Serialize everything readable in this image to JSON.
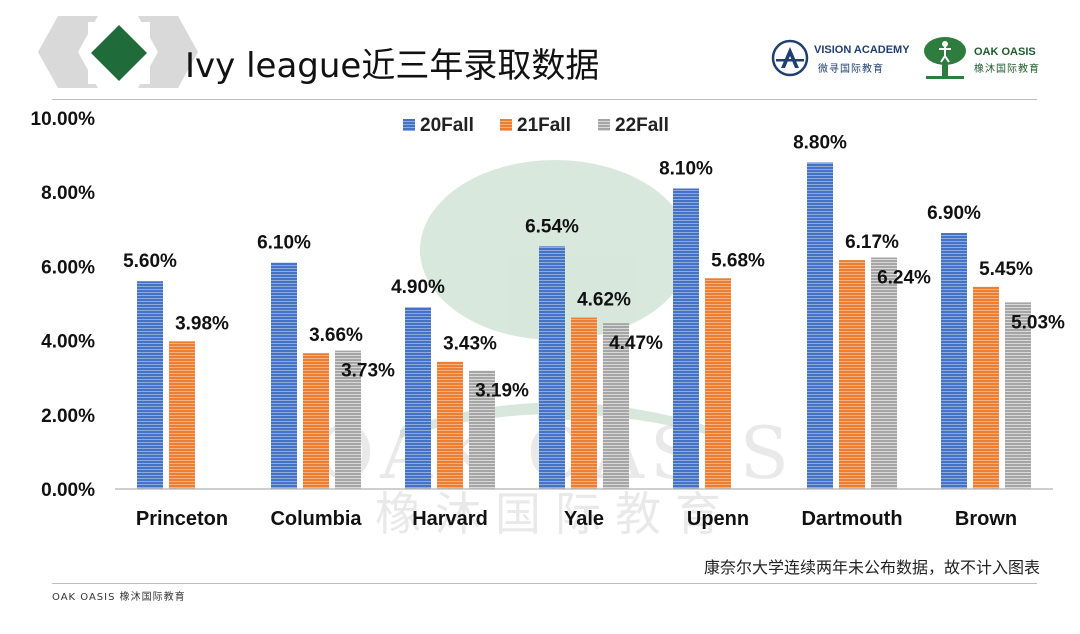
{
  "header": {
    "title": "Ivy league近三年录取数据",
    "logo_vision_name": "VISION ACADEMY",
    "logo_vision_sub": "微寻国际教育",
    "logo_oak_name": "OAK OASIS",
    "logo_oak_sub": "橡沐国际教育"
  },
  "watermark": {
    "line1": "OAK OASIS",
    "line2": "橡沐国际教育"
  },
  "note": "康奈尔大学连续两年未公布数据，故不计入图表",
  "footer": "OAK OASIS 橡沐国际教育",
  "colors": {
    "series_20": "#4472c4",
    "series_21": "#ed7d31",
    "series_22": "#a5a5a5",
    "accent_green": "#1f6b3a"
  },
  "chart_data": {
    "type": "bar",
    "title": "",
    "xlabel": "",
    "ylabel": "",
    "ylim": [
      0,
      10
    ],
    "yticks": [
      "0.00%",
      "2.00%",
      "4.00%",
      "6.00%",
      "8.00%",
      "10.00%"
    ],
    "grid": false,
    "legend_position": "top",
    "categories": [
      "Princeton",
      "Columbia",
      "Harvard",
      "Yale",
      "Upenn",
      "Dartmouth",
      "Brown"
    ],
    "series": [
      {
        "name": "20Fall",
        "values": [
          5.6,
          6.1,
          4.9,
          6.54,
          8.1,
          8.8,
          6.9
        ],
        "labels": [
          "5.60%",
          "6.10%",
          "4.90%",
          "6.54%",
          "8.10%",
          "8.80%",
          "6.90%"
        ]
      },
      {
        "name": "21Fall",
        "values": [
          3.98,
          3.66,
          3.43,
          4.62,
          5.68,
          6.17,
          5.45
        ],
        "labels": [
          "3.98%",
          "3.66%",
          "3.43%",
          "4.62%",
          "5.68%",
          "6.17%",
          "5.45%"
        ]
      },
      {
        "name": "22Fall",
        "values": [
          null,
          3.73,
          3.19,
          4.47,
          null,
          6.24,
          5.03
        ],
        "labels": [
          null,
          "3.73%",
          "3.19%",
          "4.47%",
          null,
          "6.24%",
          "5.03%"
        ]
      }
    ]
  }
}
